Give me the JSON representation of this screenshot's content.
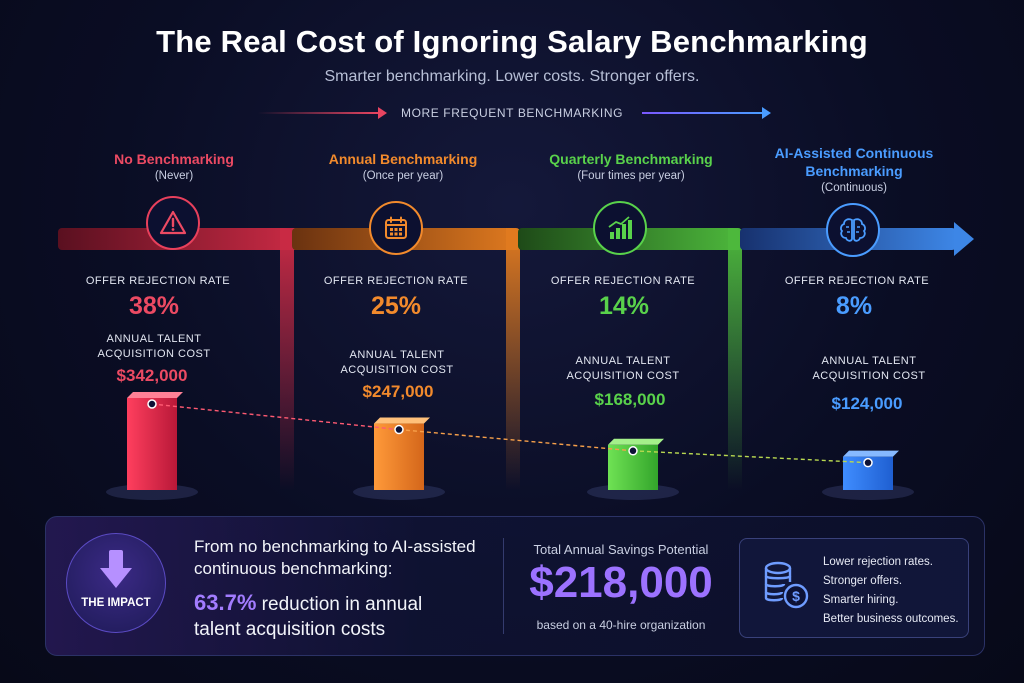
{
  "header": {
    "title": "The Real Cost of Ignoring Salary Benchmarking",
    "subtitle": "Smarter benchmarking. Lower costs. Stronger offers.",
    "frequency_label": "MORE FREQUENT BENCHMARKING"
  },
  "colors": {
    "red": "#e8405c",
    "orange": "#f28a2c",
    "green": "#59d24b",
    "blue": "#4a9cff",
    "purple": "#9c72ff"
  },
  "stages": [
    {
      "name": "No Benchmarking",
      "frequency": "(Never)",
      "icon": "warning-icon",
      "rejection_label": "OFFER REJECTION RATE",
      "rejection_rate": "38%",
      "cost_label": "ANNUAL TALENT ACQUISITION COST",
      "cost": "$342,000"
    },
    {
      "name": "Annual Benchmarking",
      "frequency": "(Once per year)",
      "icon": "calendar-icon",
      "rejection_label": "OFFER REJECTION RATE",
      "rejection_rate": "25%",
      "cost_label": "ANNUAL TALENT ACQUISITION COST",
      "cost": "$247,000"
    },
    {
      "name": "Quarterly Benchmarking",
      "frequency": "(Four times per year)",
      "icon": "bar-chart-icon",
      "rejection_label": "OFFER REJECTION RATE",
      "rejection_rate": "14%",
      "cost_label": "ANNUAL TALENT ACQUISITION COST",
      "cost": "$168,000"
    },
    {
      "name": "AI-Assisted Continuous Benchmarking",
      "frequency": "(Continuous)",
      "icon": "brain-icon",
      "rejection_label": "OFFER REJECTION RATE",
      "rejection_rate": "8%",
      "cost_label": "ANNUAL TALENT ACQUISITION COST",
      "cost": "$124,000"
    }
  ],
  "chart_data": {
    "type": "bar",
    "categories": [
      "No Benchmarking",
      "Annual Benchmarking",
      "Quarterly Benchmarking",
      "AI-Assisted Continuous Benchmarking"
    ],
    "series": [
      {
        "values": [
          342000,
          247000,
          168000,
          124000
        ]
      }
    ],
    "rejection_rates": [
      38,
      25,
      14,
      8
    ],
    "grid": false,
    "legend": "none"
  },
  "impact": {
    "badge": "THE IMPACT",
    "icon": "arrow-down-icon",
    "line1": "From no benchmarking to AI-assisted",
    "line2": "continuous benchmarking:",
    "pct": "63.7%",
    "pct_rest": " reduction in annual",
    "line4": "talent acquisition costs",
    "savings_label": "Total Annual Savings Potential",
    "savings_value": "$218,000",
    "savings_note": "based on a 40-hire organization",
    "benefits_icon": "coins-dollar-icon",
    "benefits": [
      "Lower rejection rates.",
      "Stronger offers.",
      "Smarter hiring.",
      "Better business outcomes."
    ]
  }
}
